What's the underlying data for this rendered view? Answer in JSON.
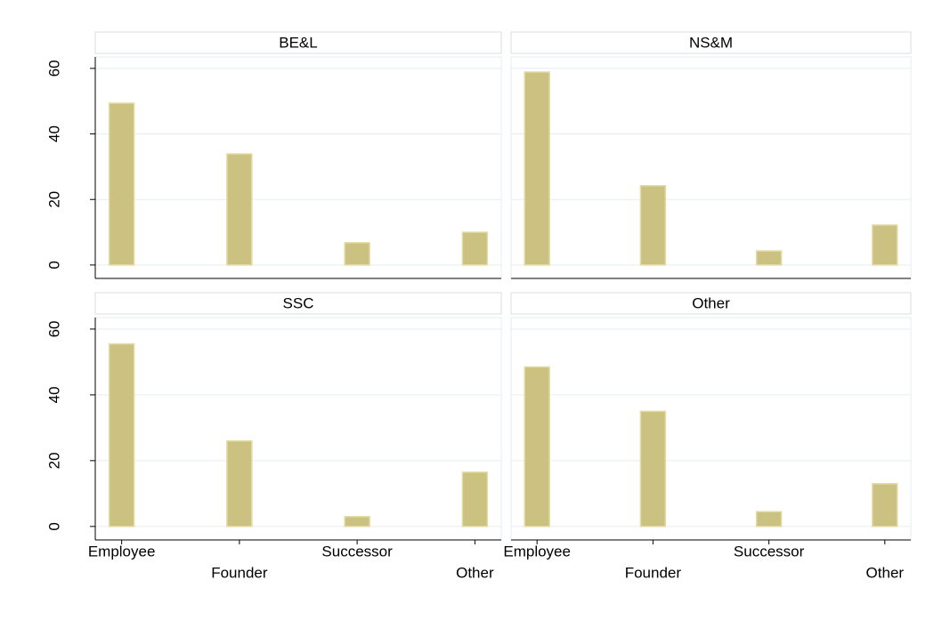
{
  "chart_data": [
    {
      "type": "bar",
      "title": "BE&L",
      "values": [
        49.4,
        33.9,
        6.8,
        10.0
      ],
      "color": "#cbc281",
      "ylim": [
        -4.1,
        63.5
      ],
      "yticks": [
        0,
        20,
        40,
        60
      ],
      "grid": true
    },
    {
      "type": "bar",
      "title": "NS&M",
      "values": [
        58.9,
        24.2,
        4.3,
        12.2
      ],
      "color": "#cbc281",
      "ylim": [
        -4.1,
        63.5
      ],
      "yticks": [
        0,
        20,
        40,
        60
      ],
      "grid": true
    },
    {
      "type": "bar",
      "title": "SSC",
      "categories": [
        "Employee",
        "Founder",
        "Successor",
        "Other"
      ],
      "values": [
        55.5,
        26,
        3,
        16.5
      ],
      "color": "#cbc281",
      "ylim": [
        -4.1,
        63.5
      ],
      "yticks": [
        0,
        20,
        40,
        60
      ],
      "grid": true
    },
    {
      "type": "bar",
      "title": "Other",
      "categories": [
        "Employee",
        "Founder",
        "Successor",
        "Other"
      ],
      "values": [
        48.5,
        35,
        4.5,
        13
      ],
      "color": "#cbc281",
      "ylim": [
        -4.1,
        63.5
      ],
      "yticks": [
        0,
        20,
        40,
        60
      ],
      "grid": true
    }
  ]
}
